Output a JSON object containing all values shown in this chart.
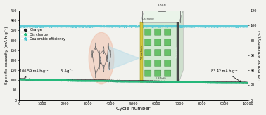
{
  "xlabel": "Cycle number",
  "ylabel_left": "Specific capacity (mA h·g⁻¹)",
  "ylabel_right": "Coulombic efficiency(%)",
  "xlim": [
    0,
    10000
  ],
  "ylim_left": [
    0,
    450
  ],
  "ylim_right": [
    0,
    120
  ],
  "xticks": [
    0,
    1000,
    2000,
    3000,
    4000,
    5000,
    6000,
    7000,
    8000,
    9000,
    10000
  ],
  "yticks_left": [
    0,
    50,
    100,
    150,
    200,
    250,
    300,
    350,
    400,
    450
  ],
  "yticks_right": [
    0,
    20,
    40,
    60,
    80,
    100,
    120
  ],
  "charge_start": 106.59,
  "discharge_start": 103.5,
  "discharge_end": 83.42,
  "coulombic_pct": 98.5,
  "annotation_left_text": "106.59 mA h·g⁻¹",
  "annotation_right_text": "83.42 mA h·g⁻¹",
  "current_density_text": "5 Ag⁻¹",
  "legend_charge": "Charge",
  "legend_discharge": "Dis charge",
  "legend_coulombic": "Coulombic efficiency",
  "color_charge": "#222222",
  "color_discharge": "#26c080",
  "color_coulombic": "#50c8d5",
  "bg_color": "#f2f2ee",
  "n_points": 10000,
  "coulombic_y_left": 370,
  "discharge_decay_rate": 1.85e-05,
  "charge_decay_rate": 1.85e-05
}
